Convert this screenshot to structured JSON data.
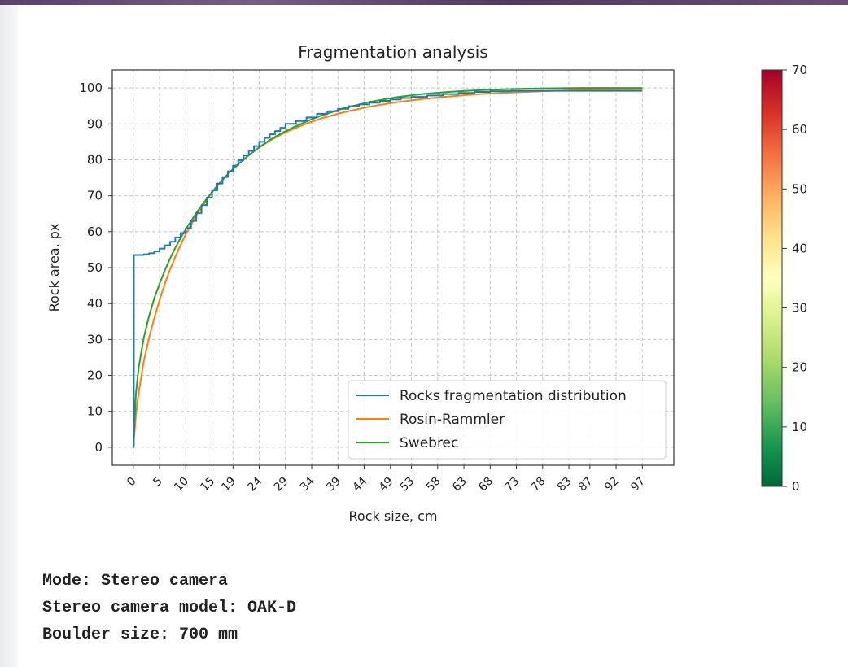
{
  "chart_data": {
    "type": "line",
    "title": "Fragmentation analysis",
    "xlabel": "Rock size, cm",
    "ylabel": "Rock area, px",
    "xlim": [
      -4,
      103
    ],
    "ylim": [
      -5,
      105
    ],
    "x_ticks": [
      0,
      5,
      10,
      15,
      19,
      24,
      29,
      34,
      39,
      44,
      49,
      53,
      58,
      63,
      68,
      73,
      78,
      83,
      87,
      92,
      97
    ],
    "y_ticks": [
      0,
      10,
      20,
      30,
      40,
      50,
      60,
      70,
      80,
      90,
      100
    ],
    "grid": true,
    "legend_position": "lower-right",
    "series": [
      {
        "name": "Rocks fragmentation distribution",
        "color": "#1f77b4",
        "style": "step",
        "x": [
          0,
          0.1,
          2,
          3,
          4,
          5,
          6,
          7,
          8,
          9,
          10,
          11,
          12,
          13,
          14,
          15,
          16,
          17,
          18,
          19,
          20,
          21,
          22,
          23,
          24,
          25,
          26,
          27,
          28,
          29,
          31,
          33,
          35,
          37,
          39,
          41,
          43,
          45,
          47,
          49,
          51,
          53,
          56,
          59,
          62,
          65,
          68,
          72,
          77,
          83,
          90,
          97
        ],
        "y": [
          0,
          53.5,
          53.7,
          54,
          54.5,
          55.3,
          56.2,
          57.2,
          58.4,
          59.6,
          61,
          63,
          65.2,
          67.4,
          69.5,
          71.5,
          73.4,
          75.2,
          76.8,
          78.4,
          79.9,
          81.2,
          82.5,
          83.8,
          85,
          86.1,
          87.1,
          88,
          88.9,
          90,
          90.8,
          91.8,
          92.8,
          93.5,
          94.2,
          94.9,
          95.4,
          95.9,
          96.4,
          96.8,
          97.2,
          97.5,
          97.9,
          98.3,
          98.6,
          98.9,
          99.1,
          99.2,
          99.2,
          99.2,
          99.2,
          99.2
        ]
      },
      {
        "name": "Rosin-Rammler",
        "color": "#ff7f0e",
        "style": "curve",
        "x": [
          0,
          0.5,
          1,
          2,
          3,
          4,
          5,
          6,
          7,
          8,
          9,
          10,
          12,
          14,
          16,
          18,
          20,
          22,
          24,
          26,
          28,
          30,
          33,
          36,
          40,
          45,
          50,
          55,
          60,
          65,
          70,
          75,
          80,
          85,
          90,
          97
        ],
        "y": [
          0,
          9,
          15,
          24,
          30.5,
          36,
          41,
          45.5,
          49.5,
          53,
          56.3,
          59.3,
          64.5,
          69,
          72.8,
          76,
          78.8,
          81.3,
          83.4,
          85.3,
          86.9,
          88.3,
          90.1,
          91.6,
          93.2,
          94.8,
          96,
          96.9,
          97.6,
          98.2,
          98.6,
          98.9,
          99.2,
          99.4,
          99.6,
          99.7
        ]
      },
      {
        "name": "Swebrec",
        "color": "#2ca02c",
        "style": "curve",
        "x": [
          0,
          0.5,
          1,
          2,
          3,
          4,
          5,
          6,
          7,
          8,
          9,
          10,
          12,
          14,
          16,
          18,
          20,
          22,
          24,
          26,
          28,
          30,
          33,
          36,
          40,
          45,
          50,
          55,
          60,
          65,
          70,
          75,
          80,
          85,
          90,
          97
        ],
        "y": [
          0,
          15,
          22,
          30.5,
          36.5,
          41.5,
          45.5,
          49.2,
          52.5,
          55.5,
          58.2,
          60.7,
          65.2,
          69.2,
          72.8,
          76,
          78.8,
          81.3,
          83.5,
          85.5,
          87.2,
          88.7,
          90.7,
          92.4,
          94.3,
          96.1,
          97.4,
          98.3,
          98.9,
          99.3,
          99.6,
          99.8,
          99.9,
          100,
          100,
          100
        ]
      }
    ],
    "colorbar": {
      "min": 0,
      "max": 70,
      "ticks": [
        0,
        10,
        20,
        30,
        40,
        50,
        60,
        70
      ],
      "colormap": "RdYlGn_r",
      "colors": [
        "#006837",
        "#1a9850",
        "#66bd63",
        "#a6d96a",
        "#d9ef8b",
        "#ffffbf",
        "#fee08b",
        "#fdae61",
        "#f46d43",
        "#d73027",
        "#a50026"
      ]
    }
  },
  "info": {
    "mode": "Mode: Stereo camera",
    "camera_model": "Stereo camera model: OAK-D",
    "boulder_size": "Boulder size: 700 mm"
  }
}
